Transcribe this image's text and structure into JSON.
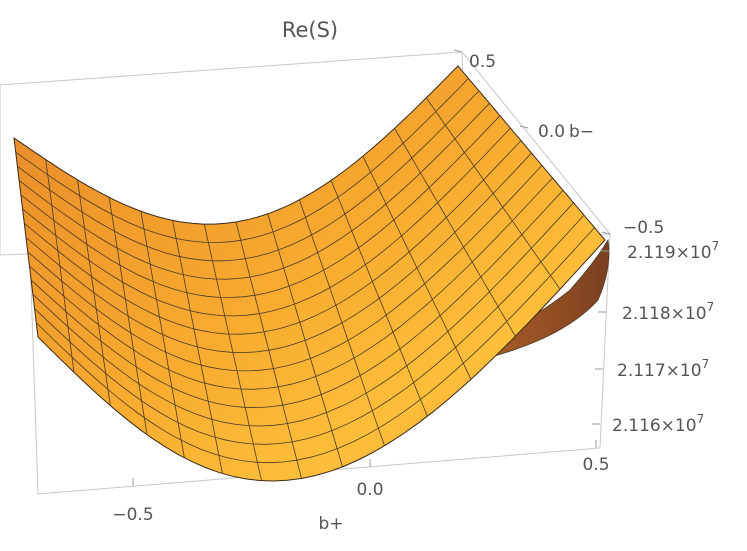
{
  "chart_data": {
    "type": "surface3d",
    "title": "Re(S)",
    "xlabel": "b+",
    "ylabel": "b−",
    "zlabel": "",
    "x_ticks": [
      "−0.5",
      "0.0",
      "0.5"
    ],
    "y_ticks": [
      "0.5",
      "0.0",
      "−0.5"
    ],
    "z_ticks": [
      {
        "mantissa": "2.119",
        "times": "×10",
        "exp": "7"
      },
      {
        "mantissa": "2.118",
        "times": "×10",
        "exp": "7"
      },
      {
        "mantissa": "2.117",
        "times": "×10",
        "exp": "7"
      },
      {
        "mantissa": "2.116",
        "times": "×10",
        "exp": "7"
      }
    ],
    "xlim": [
      -0.7,
      0.5
    ],
    "ylim": [
      -0.5,
      0.5
    ],
    "zlim": [
      21158000,
      21192000
    ],
    "mesh": "15 x 15",
    "surface_color": "#f5a623",
    "mesh_color": "#4a3a28",
    "box_color": "#c8c8c8"
  }
}
